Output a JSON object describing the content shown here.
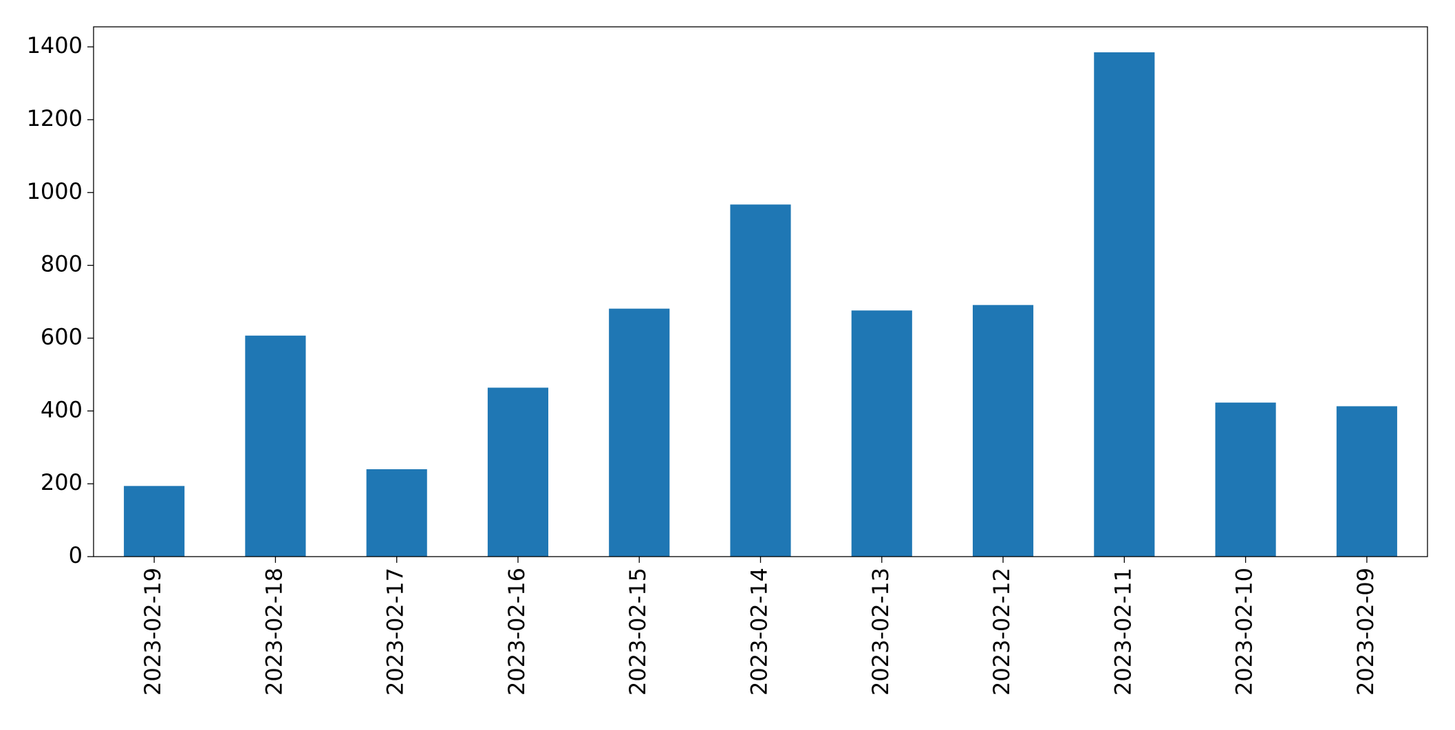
{
  "chart_data": {
    "type": "bar",
    "categories": [
      "2023-02-19",
      "2023-02-18",
      "2023-02-17",
      "2023-02-16",
      "2023-02-15",
      "2023-02-14",
      "2023-02-13",
      "2023-02-12",
      "2023-02-11",
      "2023-02-10",
      "2023-02-09"
    ],
    "values": [
      194,
      607,
      240,
      464,
      681,
      967,
      676,
      691,
      1385,
      423,
      413
    ],
    "color": "#1f77b4",
    "ylim": [
      0,
      1455
    ],
    "yticks": [
      0,
      200,
      400,
      600,
      800,
      1000,
      1200,
      1400
    ],
    "grid": false
  }
}
